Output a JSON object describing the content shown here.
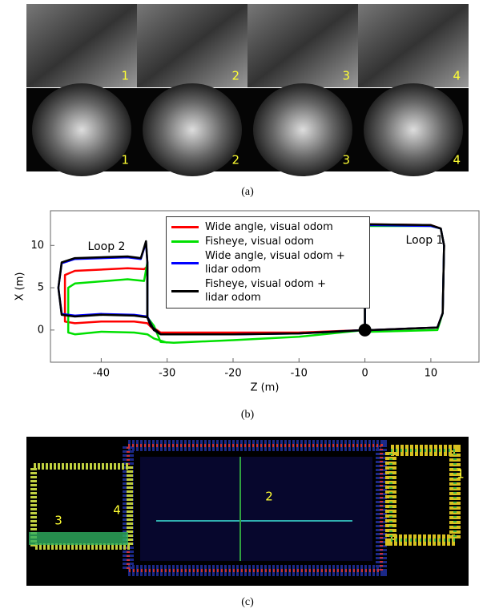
{
  "figure": {
    "panel_a": {
      "caption": "(a)",
      "top_row_labels": [
        "1",
        "2",
        "3",
        "4"
      ],
      "bottom_row_labels": [
        "1",
        "2",
        "3",
        "4"
      ]
    },
    "panel_b": {
      "caption": "(b)"
    },
    "panel_c": {
      "caption": "(c)",
      "labels": [
        "1",
        "2",
        "3",
        "4"
      ]
    }
  },
  "chart_data": {
    "type": "line",
    "xlabel": "Z (m)",
    "ylabel": "X (m)",
    "xlim": [
      -47.7,
      17.3
    ],
    "ylim": [
      -3.8,
      14.1
    ],
    "xticks": [
      -40,
      -30,
      -20,
      -10,
      0,
      10
    ],
    "yticks": [
      0,
      5,
      10
    ],
    "annotations": [
      "Loop 2",
      "Loop 1"
    ],
    "start_point": {
      "x": 0,
      "y": 0,
      "color": "#000000"
    },
    "series": [
      {
        "name": "Wide angle, visual odom",
        "color": "#ff0000",
        "x": [
          0,
          0,
          0.3,
          10,
          11.5,
          12,
          11.8,
          11,
          1,
          0,
          -10,
          -20,
          -29,
          -31,
          -32.5,
          -33,
          -33,
          -33.5,
          -36,
          -44,
          -45.5,
          -45.5,
          -44,
          -40,
          -35,
          -33,
          -32,
          -31
        ],
        "values": [
          0,
          6,
          12.5,
          12.4,
          12,
          10,
          2,
          0.3,
          0,
          0,
          -0.3,
          -0.3,
          -0.3,
          -0.3,
          0.5,
          1.5,
          7.5,
          7.2,
          7.3,
          7,
          6.5,
          1,
          0.8,
          1,
          1,
          0.8,
          0,
          -0.3
        ]
      },
      {
        "name": "Fisheye, visual odom",
        "color": "#00e000",
        "x": [
          0,
          0,
          0.5,
          10,
          11.5,
          12,
          11.8,
          11,
          1,
          0,
          -10,
          -20,
          -29,
          -31,
          -32,
          -33,
          -33,
          -33.5,
          -36,
          -44,
          -45,
          -45,
          -44,
          -40,
          -35,
          -33,
          -32,
          -30
        ],
        "values": [
          0,
          6,
          12.3,
          12.3,
          12,
          10,
          2,
          0,
          -0.2,
          0,
          -0.8,
          -1.2,
          -1.5,
          -1.4,
          0.5,
          1.5,
          8,
          5.8,
          6,
          5.5,
          5,
          -0.3,
          -0.5,
          -0.2,
          -0.3,
          -0.5,
          -1,
          -1.5
        ]
      },
      {
        "name": "Wide angle, visual odom + lidar odom",
        "color": "#0000ff",
        "x": [
          0,
          0,
          0.5,
          10,
          11.5,
          12,
          11.8,
          11,
          1,
          0,
          -10,
          -20,
          -29,
          -31,
          -32.5,
          -33,
          -33,
          -33.2,
          -33.6,
          -34,
          -36,
          -44,
          -46,
          -46.5,
          -46,
          -44,
          -40,
          -35,
          -33,
          -32,
          -31
        ],
        "values": [
          0,
          6,
          12.4,
          12.3,
          12,
          10,
          2,
          0.3,
          0,
          0,
          -0.4,
          -0.5,
          -0.5,
          -0.5,
          0.5,
          1.5,
          8,
          10.3,
          9.4,
          8.4,
          8.6,
          8.4,
          7.9,
          5,
          1.9,
          1.7,
          1.9,
          1.8,
          1.6,
          0,
          -0.5
        ]
      },
      {
        "name": "Fisheye, visual odom + lidar odom",
        "color": "#000000",
        "x": [
          0,
          0,
          0.5,
          10,
          11.5,
          12,
          11.8,
          11,
          1,
          0,
          -10,
          -20,
          -29,
          -31,
          -32.5,
          -33,
          -33,
          -33.2,
          -33.6,
          -34,
          -36,
          -44,
          -46,
          -46.5,
          -46,
          -44,
          -40,
          -35,
          -33,
          -32,
          -31
        ],
        "values": [
          0,
          6,
          12.5,
          12.4,
          12,
          10,
          2,
          0.3,
          0,
          0,
          -0.4,
          -0.5,
          -0.5,
          -0.5,
          0.5,
          1.5,
          8,
          10.5,
          9.5,
          8.5,
          8.7,
          8.5,
          8,
          5,
          1.8,
          1.6,
          1.8,
          1.7,
          1.5,
          0,
          -0.5
        ]
      }
    ]
  }
}
